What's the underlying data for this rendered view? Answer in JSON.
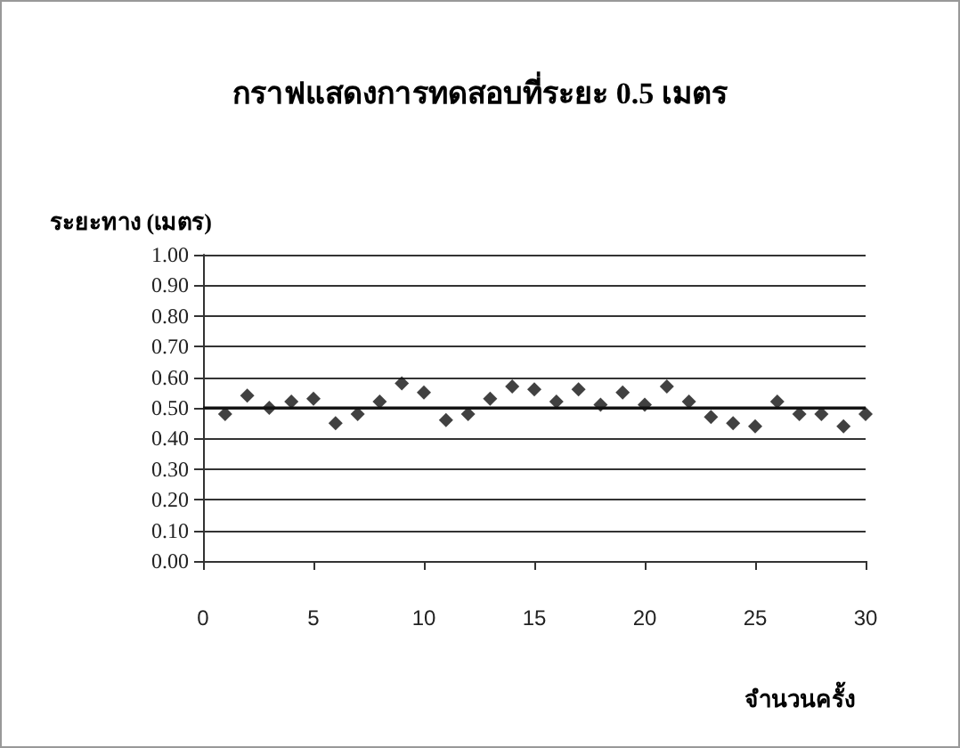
{
  "chart_data": {
    "type": "scatter",
    "title": "กราฟแสดงการทดสอบที่ระยะ 0.5 เมตร",
    "ylabel": "ระยะทาง (เมตร)",
    "xlabel": "จำนวนครั้ง",
    "x": [
      1,
      2,
      3,
      4,
      5,
      6,
      7,
      8,
      9,
      10,
      11,
      12,
      13,
      14,
      15,
      16,
      17,
      18,
      19,
      20,
      21,
      22,
      23,
      24,
      25,
      26,
      27,
      28,
      29,
      30
    ],
    "series": [
      {
        "color": "#111111",
        "values": [
          0.48,
          0.54,
          0.5,
          0.52,
          0.53,
          0.45,
          0.48,
          0.52,
          0.58,
          0.55,
          0.46,
          0.48,
          0.53,
          0.57,
          0.56,
          0.52,
          0.56,
          0.51,
          0.55,
          0.51,
          0.57,
          0.52,
          0.47,
          0.45,
          0.44,
          0.52,
          0.48,
          0.48,
          0.44,
          0.48
        ]
      }
    ],
    "xlim": [
      0,
      30
    ],
    "xticks": [
      0,
      5,
      10,
      15,
      20,
      25,
      30
    ],
    "ylim": [
      0,
      1
    ],
    "yticks": [
      {
        "value": 0,
        "label": "0.00"
      },
      {
        "value": 0.1,
        "label": "0.10"
      },
      {
        "value": 0.2,
        "label": "0.20"
      },
      {
        "value": 0.3,
        "label": "0.30"
      },
      {
        "value": 0.4,
        "label": "0.40"
      },
      {
        "value": 0.5,
        "label": "0.50"
      },
      {
        "value": 0.6,
        "label": "0.60"
      },
      {
        "value": 0.7,
        "label": "0.70"
      },
      {
        "value": 0.8,
        "label": "0.80"
      },
      {
        "value": 0.9,
        "label": "0.90"
      },
      {
        "value": 1,
        "label": "1.00"
      }
    ],
    "ref_lines": [
      {
        "axis": "y",
        "value": 0.5,
        "color": "#111111"
      }
    ],
    "grid": "y",
    "marker": "diamond"
  }
}
